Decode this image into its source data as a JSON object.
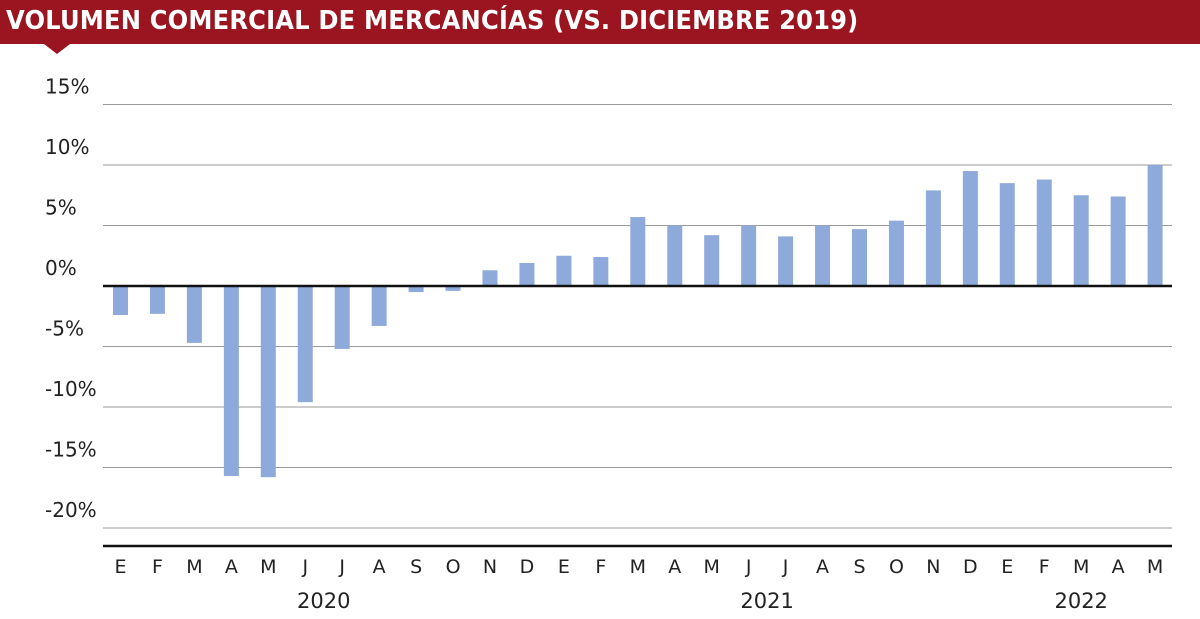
{
  "header": {
    "title": "VOLUMEN COMERCIAL DE MERCANCÍAS (VS. DICIEMBRE 2019)",
    "background_color": "#9b1520"
  },
  "chart_data": {
    "type": "bar",
    "title": "VOLUMEN COMERCIAL DE MERCANCÍAS (VS. DICIEMBRE 2019)",
    "xlabel": "",
    "ylabel": "",
    "ylim": [
      -20,
      15
    ],
    "yticks": [
      15,
      10,
      5,
      0,
      -5,
      -10,
      -15,
      -20
    ],
    "ytick_labels": [
      "15%",
      "10%",
      "5%",
      "0%",
      "-5%",
      "-10%",
      "-15%",
      "-20%"
    ],
    "categories": [
      "E",
      "F",
      "M",
      "A",
      "M",
      "J",
      "J",
      "A",
      "S",
      "O",
      "N",
      "D",
      "E",
      "F",
      "M",
      "A",
      "M",
      "J",
      "J",
      "A",
      "S",
      "O",
      "N",
      "D",
      "E",
      "F",
      "M",
      "A",
      "M"
    ],
    "values": [
      -2.4,
      -2.3,
      -4.7,
      -15.7,
      -15.8,
      -9.6,
      -5.2,
      -3.3,
      -0.5,
      -0.4,
      1.3,
      1.9,
      2.5,
      2.4,
      5.7,
      5.0,
      4.2,
      5.0,
      4.1,
      5.0,
      4.7,
      5.4,
      7.9,
      9.5,
      8.5,
      8.8,
      7.5,
      7.4,
      10.0
    ],
    "years": [
      {
        "label": "2020",
        "start_index": 0,
        "end_index": 11
      },
      {
        "label": "2021",
        "start_index": 12,
        "end_index": 23
      },
      {
        "label": "2022",
        "start_index": 24,
        "end_index": 28
      }
    ],
    "bar_color": "#8eaadb",
    "grid": true
  }
}
